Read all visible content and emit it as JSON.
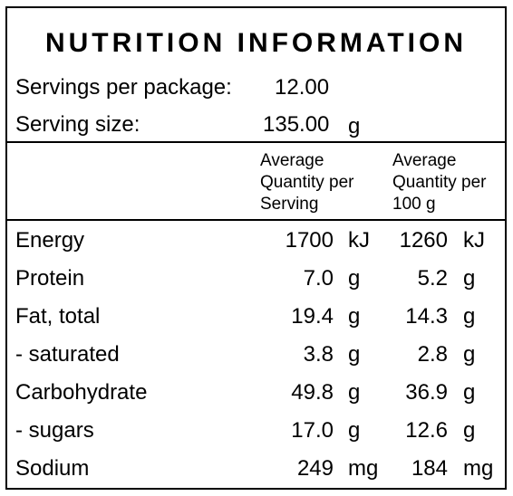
{
  "title": "NUTRITION INFORMATION",
  "servings_per_package": {
    "label": "Servings per package:",
    "value": "12.00"
  },
  "serving_size": {
    "label": "Serving size:",
    "value": "135.00",
    "unit": "g"
  },
  "columns": {
    "per_serving": "Average\nQuantity per\nServing",
    "per_100g": "Average\nQuantity per\n100 g"
  },
  "rows": [
    {
      "name": "Energy",
      "serving": "1700",
      "serving_unit": "kJ",
      "per100": "1260",
      "per100_unit": "kJ"
    },
    {
      "name": "Protein",
      "serving": "7.0",
      "serving_unit": "g",
      "per100": "5.2",
      "per100_unit": "g"
    },
    {
      "name": "Fat, total",
      "serving": "19.4",
      "serving_unit": "g",
      "per100": "14.3",
      "per100_unit": "g"
    },
    {
      "name": "- saturated",
      "serving": "3.8",
      "serving_unit": "g",
      "per100": "2.8",
      "per100_unit": "g"
    },
    {
      "name": "Carbohydrate",
      "serving": "49.8",
      "serving_unit": "g",
      "per100": "36.9",
      "per100_unit": "g"
    },
    {
      "name": "- sugars",
      "serving": "17.0",
      "serving_unit": "g",
      "per100": "12.6",
      "per100_unit": "g"
    },
    {
      "name": "Sodium",
      "serving": "249",
      "serving_unit": "mg",
      "per100": "184",
      "per100_unit": "mg"
    }
  ]
}
